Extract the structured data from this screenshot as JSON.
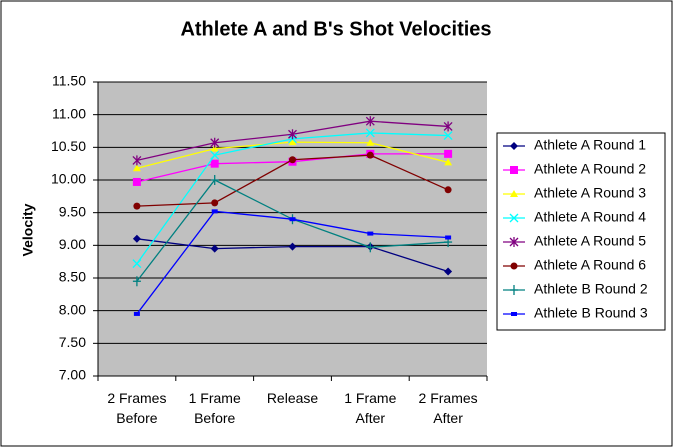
{
  "chart_data": {
    "type": "line",
    "title": "Athlete A and B's Shot Velocities",
    "y_label": "Velocity",
    "categories": [
      "2 Frames Before",
      "1 Frame Before",
      "Release",
      "1 Frame After",
      "2 Frames After"
    ],
    "ylim": [
      7,
      11.5
    ],
    "yticks": [
      {
        "value": 7,
        "label": "7.00"
      },
      {
        "value": 7.5,
        "label": "7.50"
      },
      {
        "value": 8,
        "label": "8.00"
      },
      {
        "value": 8.5,
        "label": "8.50"
      },
      {
        "value": 9,
        "label": "9.00"
      },
      {
        "value": 9.5,
        "label": "9.50"
      },
      {
        "value": 10,
        "label": "10.00"
      },
      {
        "value": 10.5,
        "label": "10.50"
      },
      {
        "value": 11,
        "label": "11.00"
      },
      {
        "value": 11.5,
        "label": "11.50"
      }
    ],
    "grid": true,
    "legend": "right",
    "series": [
      {
        "name": "Athlete A Round 1",
        "color": "#000080",
        "marker": "diamond",
        "values": [
          9.1,
          8.95,
          8.98,
          8.98,
          8.6
        ]
      },
      {
        "name": "Athlete A Round 2",
        "color": "#ff00ff",
        "marker": "square",
        "values": [
          9.97,
          10.25,
          10.28,
          10.4,
          10.4
        ]
      },
      {
        "name": "Athlete A Round 3",
        "color": "#ffff00",
        "marker": "triangle",
        "values": [
          10.18,
          10.48,
          10.58,
          10.57,
          10.27
        ]
      },
      {
        "name": "Athlete A Round 4",
        "color": "#00ffff",
        "marker": "x",
        "values": [
          8.72,
          10.38,
          10.63,
          10.72,
          10.68
        ]
      },
      {
        "name": "Athlete A Round 5",
        "color": "#800080",
        "marker": "star",
        "values": [
          10.3,
          10.57,
          10.7,
          10.9,
          10.82
        ]
      },
      {
        "name": "Athlete A Round 6",
        "color": "#800000",
        "marker": "circle",
        "values": [
          9.6,
          9.65,
          10.31,
          10.38,
          9.85
        ]
      },
      {
        "name": "Athlete B Round 2",
        "color": "#008080",
        "marker": "plus",
        "values": [
          8.45,
          10.0,
          9.4,
          8.97,
          9.05
        ]
      },
      {
        "name": "Athlete B Round 3",
        "color": "#0000ff",
        "marker": "dash",
        "values": [
          7.95,
          9.52,
          9.4,
          9.18,
          9.12
        ]
      }
    ]
  }
}
